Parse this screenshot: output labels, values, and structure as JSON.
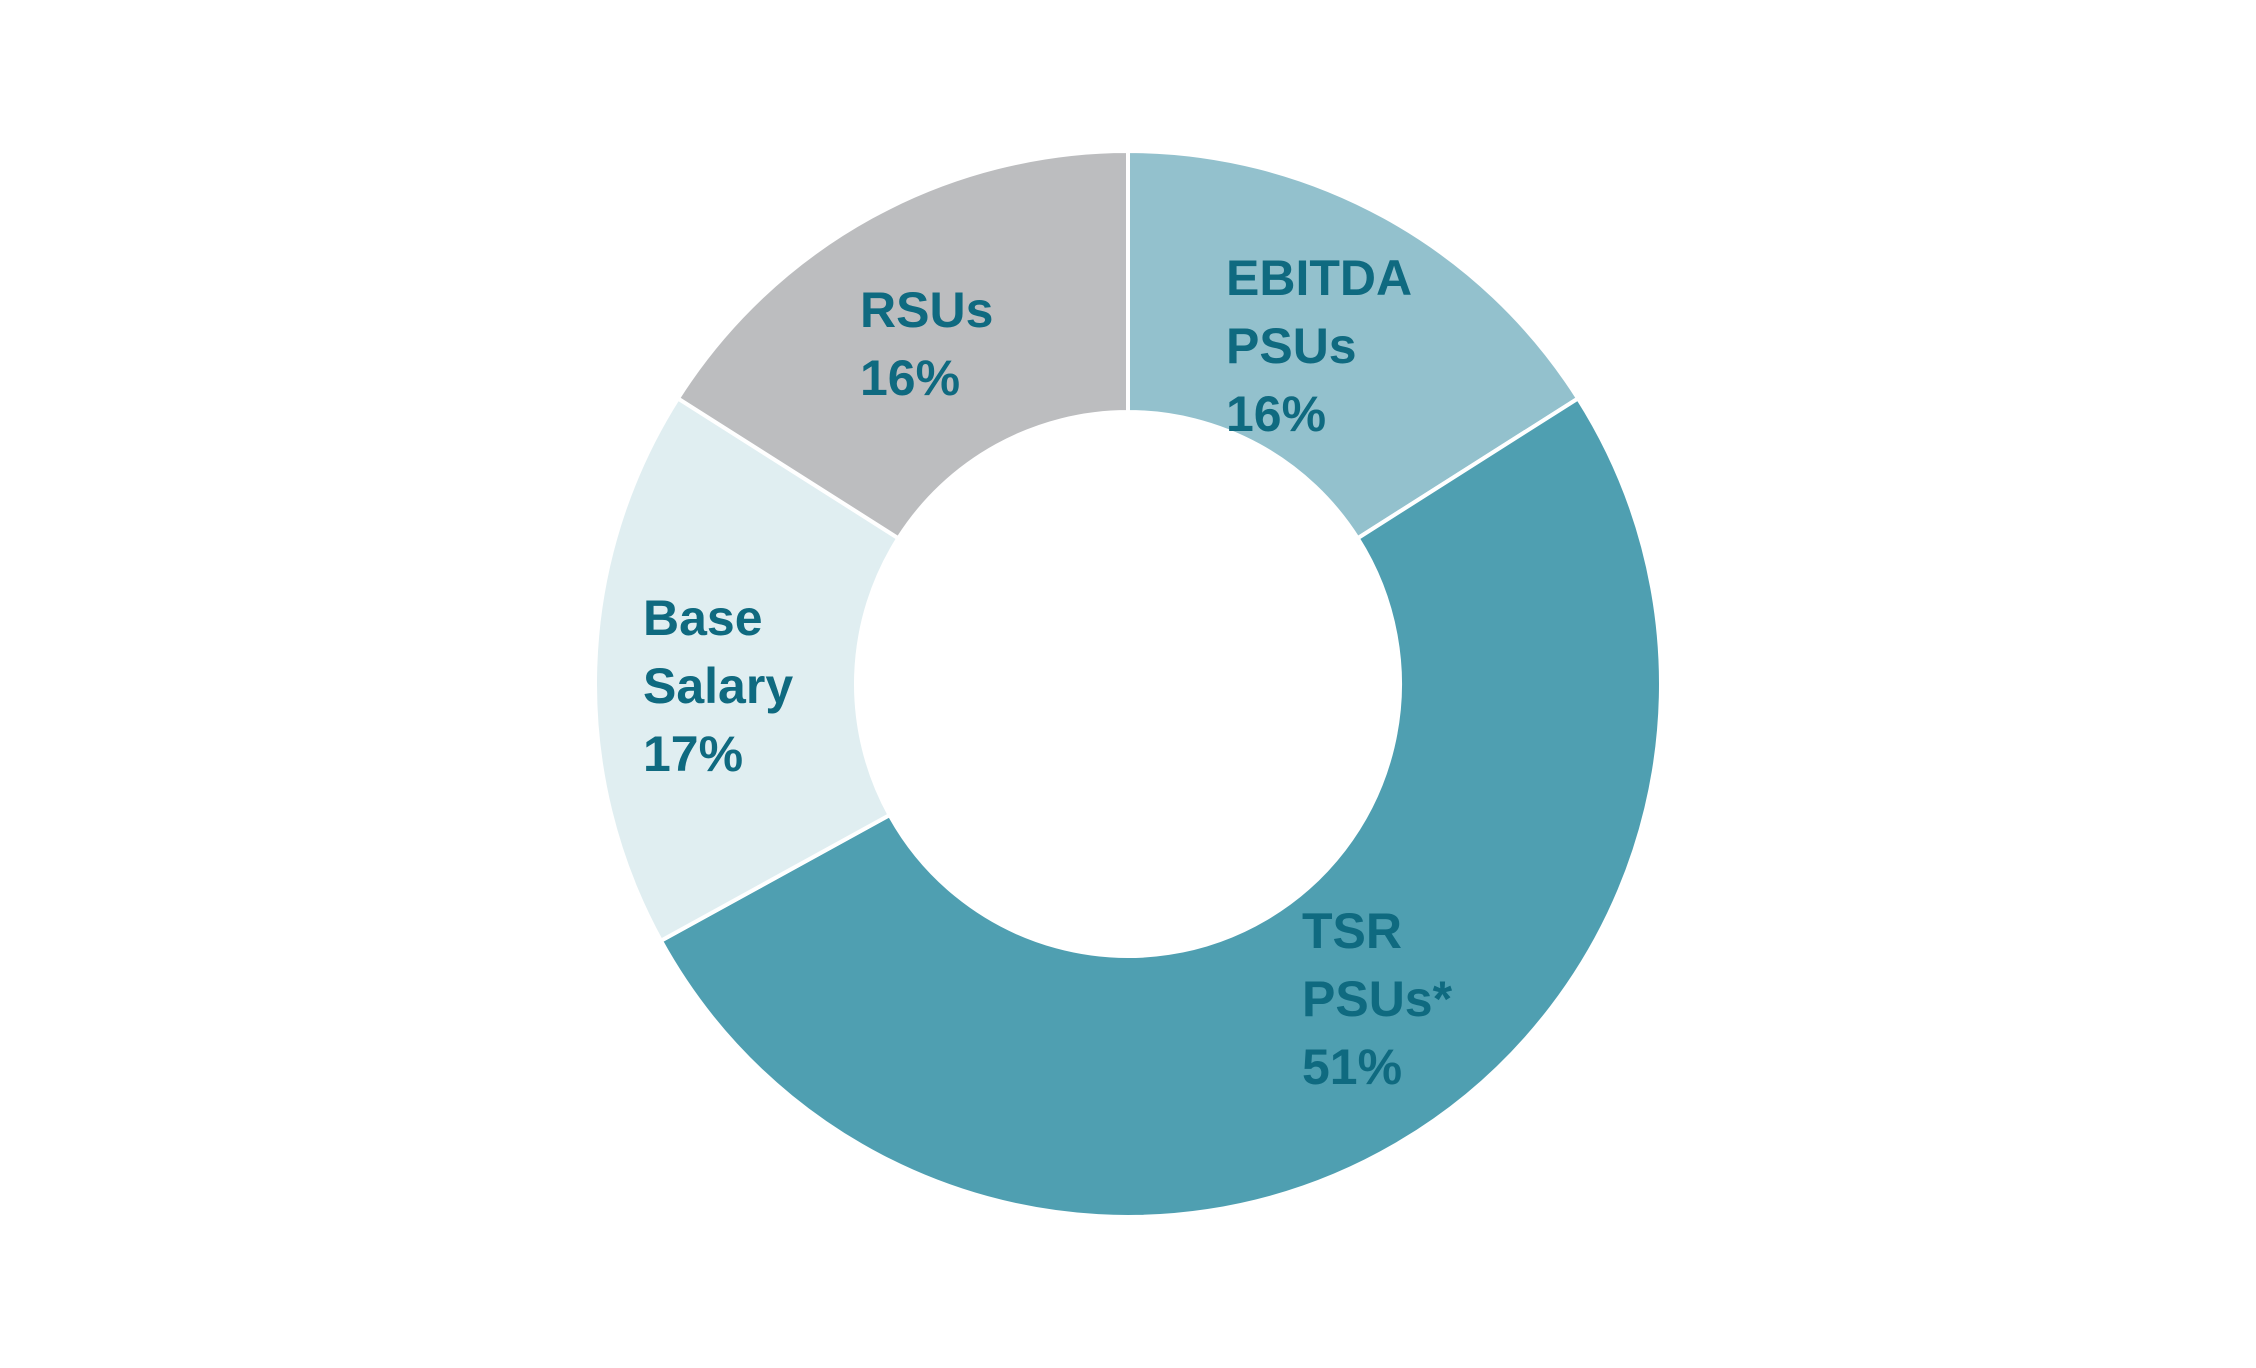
{
  "chart_data": {
    "type": "pie",
    "style": "donut",
    "start_angle_deg": 0,
    "direction": "clockwise",
    "label_color": "#0f6a80",
    "slice_border_color": "#ffffff",
    "slices": [
      {
        "name": "EBITDA PSUs",
        "label_lines": [
          "EBITDA",
          "PSUs",
          "16%"
        ],
        "value": 16,
        "color": "#93c1cd"
      },
      {
        "name": "TSR PSUs*",
        "label_lines": [
          "TSR",
          "PSUs*",
          "51%"
        ],
        "value": 51,
        "color": "#4f9fb1"
      },
      {
        "name": "Base Salary",
        "label_lines": [
          "Base",
          "Salary",
          "17%"
        ],
        "value": 17,
        "color": "#e0eef1"
      },
      {
        "name": "RSUs",
        "label_lines": [
          "RSUs",
          "16%"
        ],
        "value": 16,
        "color": "#bcbdbf"
      }
    ]
  }
}
